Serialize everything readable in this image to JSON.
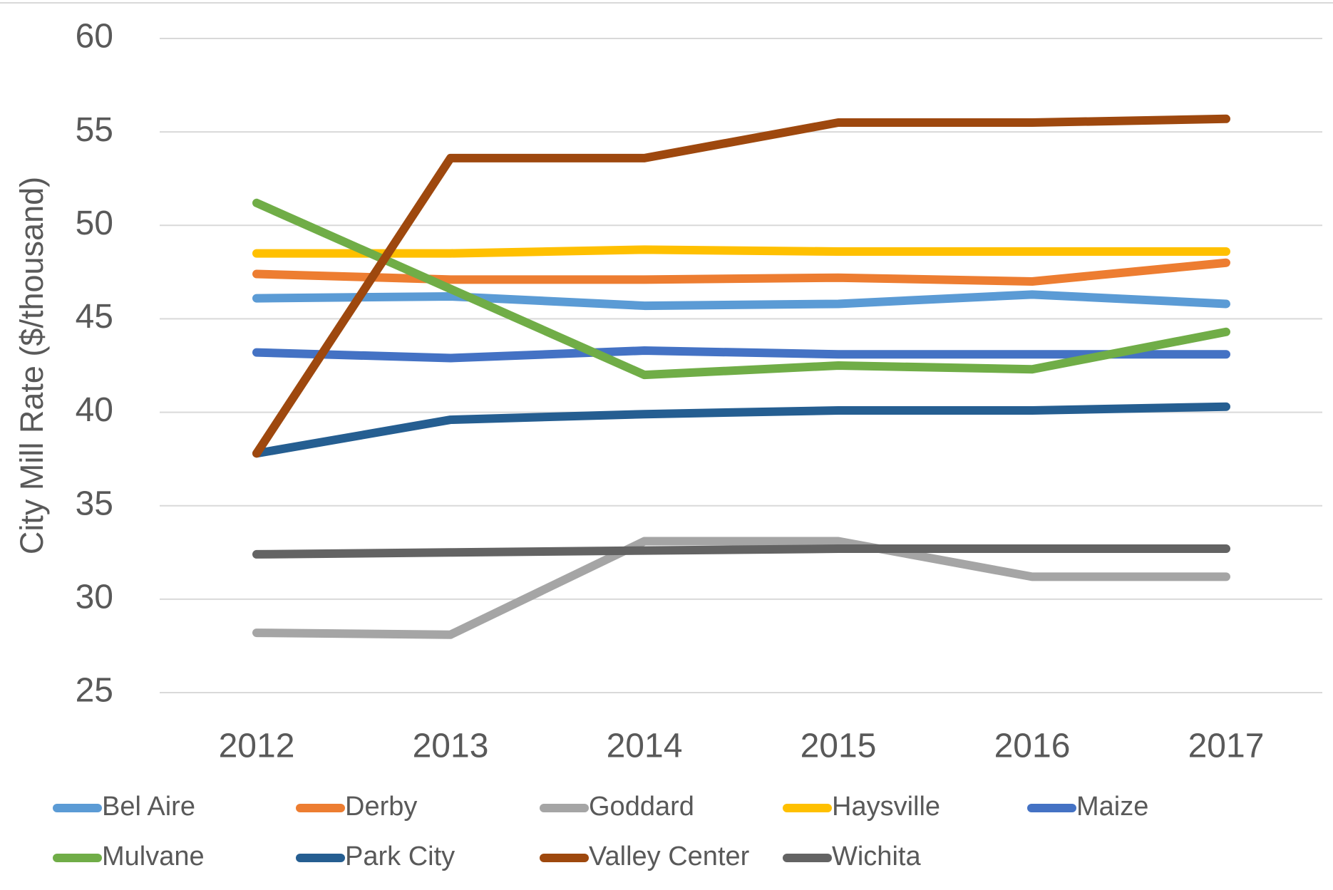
{
  "chart_data": {
    "type": "line",
    "y_label": "City Mill Rate ($/thousand)",
    "categories": [
      "2012",
      "2013",
      "2014",
      "2015",
      "2016",
      "2017"
    ],
    "ylim": [
      25,
      60
    ],
    "yticks": [
      25,
      30,
      35,
      40,
      45,
      50,
      55,
      60
    ],
    "grid": true,
    "series": [
      {
        "name": "Bel Aire",
        "color": "#5b9bd5",
        "values": [
          46.1,
          46.2,
          45.7,
          45.8,
          46.3,
          45.8
        ]
      },
      {
        "name": "Derby",
        "color": "#ed7d31",
        "values": [
          47.4,
          47.1,
          47.1,
          47.2,
          47.0,
          48.0
        ]
      },
      {
        "name": "Goddard",
        "color": "#a5a5a5",
        "values": [
          28.2,
          28.1,
          33.1,
          33.1,
          31.2,
          31.2
        ]
      },
      {
        "name": "Haysville",
        "color": "#ffc000",
        "values": [
          48.5,
          48.5,
          48.7,
          48.6,
          48.6,
          48.6
        ]
      },
      {
        "name": "Maize",
        "color": "#4472c4",
        "values": [
          43.2,
          42.9,
          43.3,
          43.1,
          43.1,
          43.1
        ]
      },
      {
        "name": "Mulvane",
        "color": "#70ad47",
        "values": [
          51.2,
          46.6,
          42.0,
          42.5,
          42.3,
          44.3
        ]
      },
      {
        "name": "Park City",
        "color": "#255e91",
        "values": [
          37.8,
          39.6,
          39.9,
          40.1,
          40.1,
          40.3
        ]
      },
      {
        "name": "Valley Center",
        "color": "#9e480e",
        "values": [
          37.8,
          53.6,
          53.6,
          55.5,
          55.5,
          55.7
        ]
      },
      {
        "name": "Wichita",
        "color": "#636363",
        "values": [
          32.4,
          32.5,
          32.6,
          32.7,
          32.7,
          32.7
        ]
      }
    ]
  }
}
